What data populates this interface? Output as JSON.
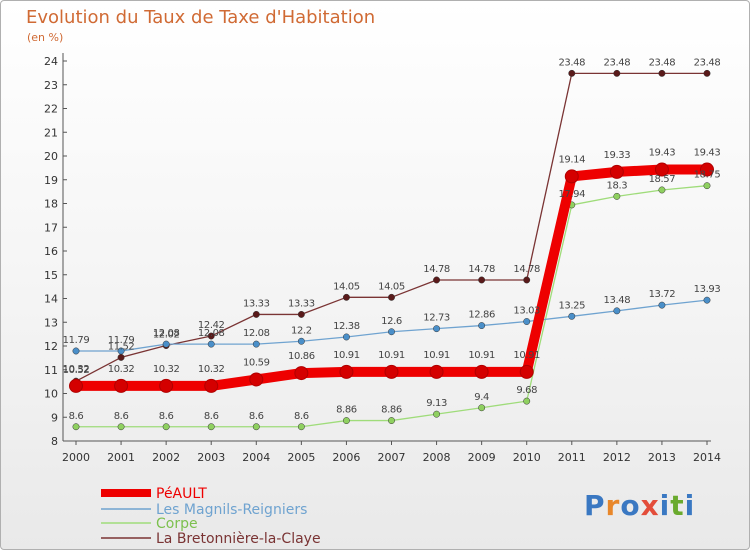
{
  "title": "Evolution du Taux de Taxe d'Habitation",
  "unit_label": "(en %)",
  "brand": {
    "text": "Proxiti",
    "colors": [
      "#3a78c2",
      "#e8872a",
      "#3a78c2",
      "#e34d3a",
      "#3a78c2",
      "#6aaa2e",
      "#3a78c2"
    ]
  },
  "chart_data": {
    "type": "line",
    "title": "Evolution du Taux de Taxe d'Habitation",
    "ylabel": "(en %)",
    "xlabel": "",
    "x": [
      "2000",
      "2001",
      "2002",
      "2003",
      "2004",
      "2005",
      "2006",
      "2007",
      "2008",
      "2009",
      "2010",
      "2011",
      "2012",
      "2013",
      "2014"
    ],
    "ylim": [
      8,
      24
    ],
    "yticks": [
      8,
      9,
      10,
      11,
      12,
      13,
      14,
      15,
      16,
      17,
      18,
      19,
      20,
      21,
      22,
      23,
      24
    ],
    "grid": false,
    "legend": "bottom-left",
    "series": [
      {
        "name": "PéAULT",
        "color": "#ee0000",
        "marker": "#d40000",
        "values": [
          10.32,
          10.32,
          10.32,
          10.32,
          10.59,
          10.86,
          10.91,
          10.91,
          10.91,
          10.91,
          10.91,
          19.14,
          19.33,
          19.43,
          19.43
        ],
        "labels": [
          "10.32",
          "10.32",
          "10.32",
          "10.32",
          "10.59",
          "10.86",
          "10.91",
          "10.91",
          "10.91",
          "10.91",
          "10.91",
          "19.14",
          "19.33",
          "19.43",
          "19.43"
        ]
      },
      {
        "name": "Les Magnils-Reigniers",
        "color": "#6fa3d0",
        "marker": "#4a8fc9",
        "values": [
          11.79,
          11.79,
          12.08,
          12.08,
          12.08,
          12.2,
          12.38,
          12.6,
          12.73,
          12.86,
          13.03,
          13.25,
          13.48,
          13.72,
          13.93
        ],
        "labels": [
          "11.79",
          "11.79",
          "12.08",
          "12.08",
          "12.08",
          "12.2",
          "12.38",
          "12.6",
          "12.73",
          "12.86",
          "13.03",
          "13.25",
          "13.48",
          "13.72",
          "13.93"
        ]
      },
      {
        "name": "Corpe",
        "color": "#9fdc7a",
        "marker": "#8fd060",
        "values": [
          8.6,
          8.6,
          8.6,
          8.6,
          8.6,
          8.6,
          8.86,
          8.86,
          9.13,
          9.4,
          9.68,
          17.94,
          18.3,
          18.57,
          18.75
        ],
        "labels": [
          "8.6",
          "8.6",
          "8.6",
          "8.6",
          "8.6",
          "8.6",
          "8.86",
          "8.86",
          "9.13",
          "9.4",
          "9.68",
          "17.94",
          "18.3",
          "18.57",
          "18.75"
        ]
      },
      {
        "name": "La Bretonnière-la-Claye",
        "color": "#7a3434",
        "marker": "#5a1a1a",
        "values": [
          10.52,
          11.52,
          12.02,
          12.42,
          13.33,
          13.33,
          14.05,
          14.05,
          14.78,
          14.78,
          14.78,
          23.48,
          23.48,
          23.48,
          23.48
        ],
        "labels": [
          "10.52",
          "11.52",
          "12.02",
          "12.42",
          "13.33",
          "13.33",
          "14.05",
          "14.05",
          "14.78",
          "14.78",
          "14.78",
          "23.48",
          "23.48",
          "23.48",
          "23.48"
        ]
      }
    ]
  }
}
